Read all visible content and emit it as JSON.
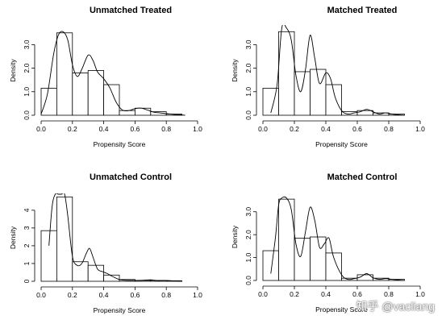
{
  "watermark": "知乎 @vacliang",
  "chart_data": [
    {
      "type": "bar",
      "title": "Unmatched Treated",
      "xlabel": "Propensity Score",
      "ylabel": "Density",
      "xlim": [
        0.0,
        1.0
      ],
      "ylim": [
        0.0,
        3.8
      ],
      "xticks": [
        "0.0",
        "0.2",
        "0.4",
        "0.6",
        "0.8",
        "1.0"
      ],
      "yticks": [
        "0.0",
        "1.0",
        "2.0",
        "3.0"
      ],
      "bin_edges": [
        0.0,
        0.1,
        0.2,
        0.3,
        0.4,
        0.5,
        0.6,
        0.7,
        0.8,
        0.9
      ],
      "values": [
        1.15,
        3.5,
        1.8,
        1.9,
        1.3,
        0.2,
        0.3,
        0.15,
        0.05
      ],
      "density_curve": {
        "x": [
          0.0,
          0.04,
          0.08,
          0.11,
          0.14,
          0.17,
          0.2,
          0.23,
          0.26,
          0.3,
          0.33,
          0.36,
          0.4,
          0.44,
          0.48,
          0.52,
          0.56,
          0.6,
          0.64,
          0.68,
          0.72,
          0.76,
          0.8,
          0.84,
          0.88,
          0.92
        ],
        "y": [
          0.05,
          0.9,
          2.6,
          3.4,
          3.55,
          3.2,
          2.15,
          1.65,
          1.95,
          2.55,
          2.35,
          1.85,
          1.55,
          1.15,
          0.55,
          0.22,
          0.2,
          0.28,
          0.3,
          0.22,
          0.13,
          0.1,
          0.07,
          0.04,
          0.02,
          0.0
        ]
      }
    },
    {
      "type": "bar",
      "title": "Matched Treated",
      "xlabel": "Propensity Score",
      "ylabel": "Density",
      "xlim": [
        0.0,
        1.0
      ],
      "ylim": [
        0.0,
        3.8
      ],
      "xticks": [
        "0.0",
        "0.2",
        "0.4",
        "0.6",
        "0.8",
        "1.0"
      ],
      "yticks": [
        "0.0",
        "1.0",
        "2.0",
        "3.0"
      ],
      "bin_edges": [
        0.0,
        0.1,
        0.2,
        0.3,
        0.4,
        0.5,
        0.6,
        0.7,
        0.8,
        0.9
      ],
      "values": [
        1.15,
        3.55,
        1.85,
        1.95,
        1.3,
        0.15,
        0.2,
        0.1,
        0.05
      ],
      "density_curve": {
        "x": [
          0.05,
          0.09,
          0.12,
          0.15,
          0.18,
          0.21,
          0.24,
          0.27,
          0.3,
          0.33,
          0.36,
          0.4,
          0.43,
          0.46,
          0.5,
          0.54,
          0.58,
          0.62,
          0.66,
          0.7,
          0.74,
          0.78,
          0.82,
          0.86,
          0.9
        ],
        "y": [
          0.1,
          1.3,
          3.7,
          3.7,
          3.2,
          1.7,
          1.0,
          1.9,
          3.4,
          2.4,
          1.35,
          1.8,
          1.55,
          0.75,
          0.2,
          0.05,
          0.1,
          0.15,
          0.25,
          0.15,
          0.05,
          0.1,
          0.05,
          0.02,
          0.0
        ]
      }
    },
    {
      "type": "bar",
      "title": "Unmatched Control",
      "xlabel": "Propensity Score",
      "ylabel": "Density",
      "xlim": [
        0.0,
        1.0
      ],
      "ylim": [
        0.0,
        4.9
      ],
      "xticks": [
        "0.0",
        "0.2",
        "0.4",
        "0.6",
        "0.8",
        "1.0"
      ],
      "yticks": [
        "0",
        "1",
        "2",
        "3",
        "4"
      ],
      "bin_edges": [
        0.0,
        0.1,
        0.2,
        0.3,
        0.4,
        0.5,
        0.6,
        0.7,
        0.8,
        0.9
      ],
      "values": [
        2.85,
        4.75,
        1.1,
        0.9,
        0.35,
        0.1,
        0.05,
        0.05,
        0.03
      ],
      "density_curve": {
        "x": [
          0.05,
          0.07,
          0.09,
          0.11,
          0.13,
          0.15,
          0.17,
          0.2,
          0.23,
          0.26,
          0.29,
          0.31,
          0.33,
          0.36,
          0.39,
          0.42,
          0.45,
          0.5,
          0.55,
          0.6,
          0.65,
          0.7,
          0.75,
          0.8,
          0.85,
          0.9
        ],
        "y": [
          2.0,
          4.2,
          4.9,
          4.9,
          4.9,
          4.9,
          3.7,
          1.4,
          0.9,
          1.0,
          1.6,
          1.85,
          1.4,
          0.7,
          0.55,
          0.45,
          0.3,
          0.1,
          0.05,
          0.05,
          0.06,
          0.08,
          0.03,
          0.05,
          0.02,
          0.0
        ]
      }
    },
    {
      "type": "bar",
      "title": "Matched Control",
      "xlabel": "Propensity Score",
      "ylabel": "Density",
      "xlim": [
        0.0,
        1.0
      ],
      "ylim": [
        0.0,
        3.8
      ],
      "xticks": [
        "0.0",
        "0.2",
        "0.4",
        "0.6",
        "0.8",
        "1.0"
      ],
      "yticks": [
        "0.0",
        "1.0",
        "2.0",
        "3.0"
      ],
      "bin_edges": [
        0.0,
        0.1,
        0.2,
        0.3,
        0.4,
        0.5,
        0.6,
        0.7,
        0.8,
        0.9
      ],
      "values": [
        1.3,
        3.55,
        1.85,
        1.9,
        1.2,
        0.1,
        0.25,
        0.1,
        0.05
      ],
      "density_curve": {
        "x": [
          0.05,
          0.08,
          0.1,
          0.12,
          0.15,
          0.18,
          0.21,
          0.24,
          0.27,
          0.3,
          0.33,
          0.36,
          0.39,
          0.42,
          0.45,
          0.5,
          0.54,
          0.58,
          0.62,
          0.66,
          0.7,
          0.74,
          0.78,
          0.82,
          0.86,
          0.9
        ],
        "y": [
          0.3,
          1.9,
          3.3,
          3.6,
          3.6,
          3.1,
          1.6,
          1.05,
          2.1,
          3.2,
          2.6,
          1.45,
          1.6,
          1.85,
          1.0,
          0.25,
          0.05,
          0.08,
          0.15,
          0.3,
          0.12,
          0.05,
          0.08,
          0.05,
          0.02,
          0.0
        ]
      }
    }
  ]
}
